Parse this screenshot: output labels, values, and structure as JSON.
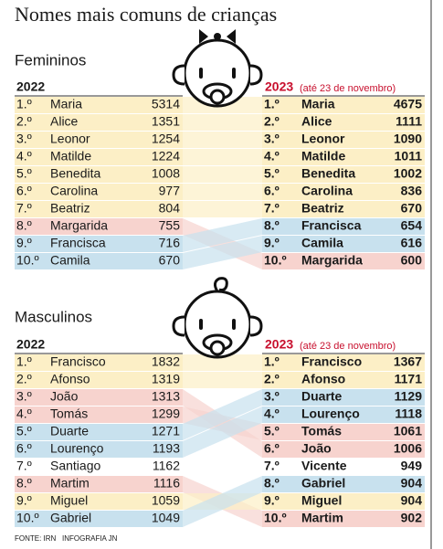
{
  "title": "Nomes mais comuns de crianças",
  "sections": [
    {
      "heading": "Femininos",
      "left": {
        "year": "2022",
        "rows": [
          {
            "rank": "1.º",
            "name": "Maria",
            "count": 5314
          },
          {
            "rank": "2.º",
            "name": "Alice",
            "count": 1351
          },
          {
            "rank": "3.º",
            "name": "Leonor",
            "count": 1254
          },
          {
            "rank": "4.º",
            "name": "Matilde",
            "count": 1224
          },
          {
            "rank": "5.º",
            "name": "Benedita",
            "count": 1008
          },
          {
            "rank": "6.º",
            "name": "Carolina",
            "count": 977
          },
          {
            "rank": "7.º",
            "name": "Beatriz",
            "count": 804
          },
          {
            "rank": "8.º",
            "name": "Margarida",
            "count": 755
          },
          {
            "rank": "9.º",
            "name": "Francisca",
            "count": 716
          },
          {
            "rank": "10.º",
            "name": "Camila",
            "count": 670
          }
        ]
      },
      "right": {
        "year": "2023",
        "note": "(até 23 de novembro)",
        "rows": [
          {
            "rank": "1.º",
            "name": "Maria",
            "count": 4675
          },
          {
            "rank": "2.º",
            "name": "Alice",
            "count": 1111
          },
          {
            "rank": "3.º",
            "name": "Leonor",
            "count": 1090
          },
          {
            "rank": "4.º",
            "name": "Matilde",
            "count": 1011
          },
          {
            "rank": "5.º",
            "name": "Benedita",
            "count": 1002
          },
          {
            "rank": "6.º",
            "name": "Carolina",
            "count": 836
          },
          {
            "rank": "7.º",
            "name": "Beatriz",
            "count": 670
          },
          {
            "rank": "8.º",
            "name": "Francisca",
            "count": 654
          },
          {
            "rank": "9.º",
            "name": "Camila",
            "count": 616
          },
          {
            "rank": "10.º",
            "name": "Margarida",
            "count": 600
          }
        ]
      }
    },
    {
      "heading": "Masculinos",
      "left": {
        "year": "2022",
        "rows": [
          {
            "rank": "1.º",
            "name": "Francisco",
            "count": 1832
          },
          {
            "rank": "2.º",
            "name": "Afonso",
            "count": 1319
          },
          {
            "rank": "3.º",
            "name": "João",
            "count": 1313
          },
          {
            "rank": "4.º",
            "name": "Tomás",
            "count": 1299
          },
          {
            "rank": "5.º",
            "name": "Duarte",
            "count": 1271
          },
          {
            "rank": "6.º",
            "name": "Lourenço",
            "count": 1193
          },
          {
            "rank": "7.º",
            "name": "Santiago",
            "count": 1162
          },
          {
            "rank": "8.º",
            "name": "Martim",
            "count": 1116
          },
          {
            "rank": "9.º",
            "name": "Miguel",
            "count": 1059
          },
          {
            "rank": "10.º",
            "name": "Gabriel",
            "count": 1049
          }
        ]
      },
      "right": {
        "year": "2023",
        "note": "(até 23 de novembro)",
        "rows": [
          {
            "rank": "1.º",
            "name": "Francisco",
            "count": 1367
          },
          {
            "rank": "2.º",
            "name": "Afonso",
            "count": 1171
          },
          {
            "rank": "3.º",
            "name": "Duarte",
            "count": 1129
          },
          {
            "rank": "4.º",
            "name": "Lourenço",
            "count": 1118
          },
          {
            "rank": "5.º",
            "name": "Tomás",
            "count": 1061
          },
          {
            "rank": "6.º",
            "name": "João",
            "count": 1006
          },
          {
            "rank": "7.º",
            "name": "Vicente",
            "count": 949
          },
          {
            "rank": "8.º",
            "name": "Gabriel",
            "count": 904
          },
          {
            "rank": "9.º",
            "name": "Miguel",
            "count": 904
          },
          {
            "rank": "10.º",
            "name": "Martim",
            "count": 902
          }
        ]
      }
    }
  ],
  "source": "FONTE: IRN",
  "credit": "INFOGRAFIA JN"
}
